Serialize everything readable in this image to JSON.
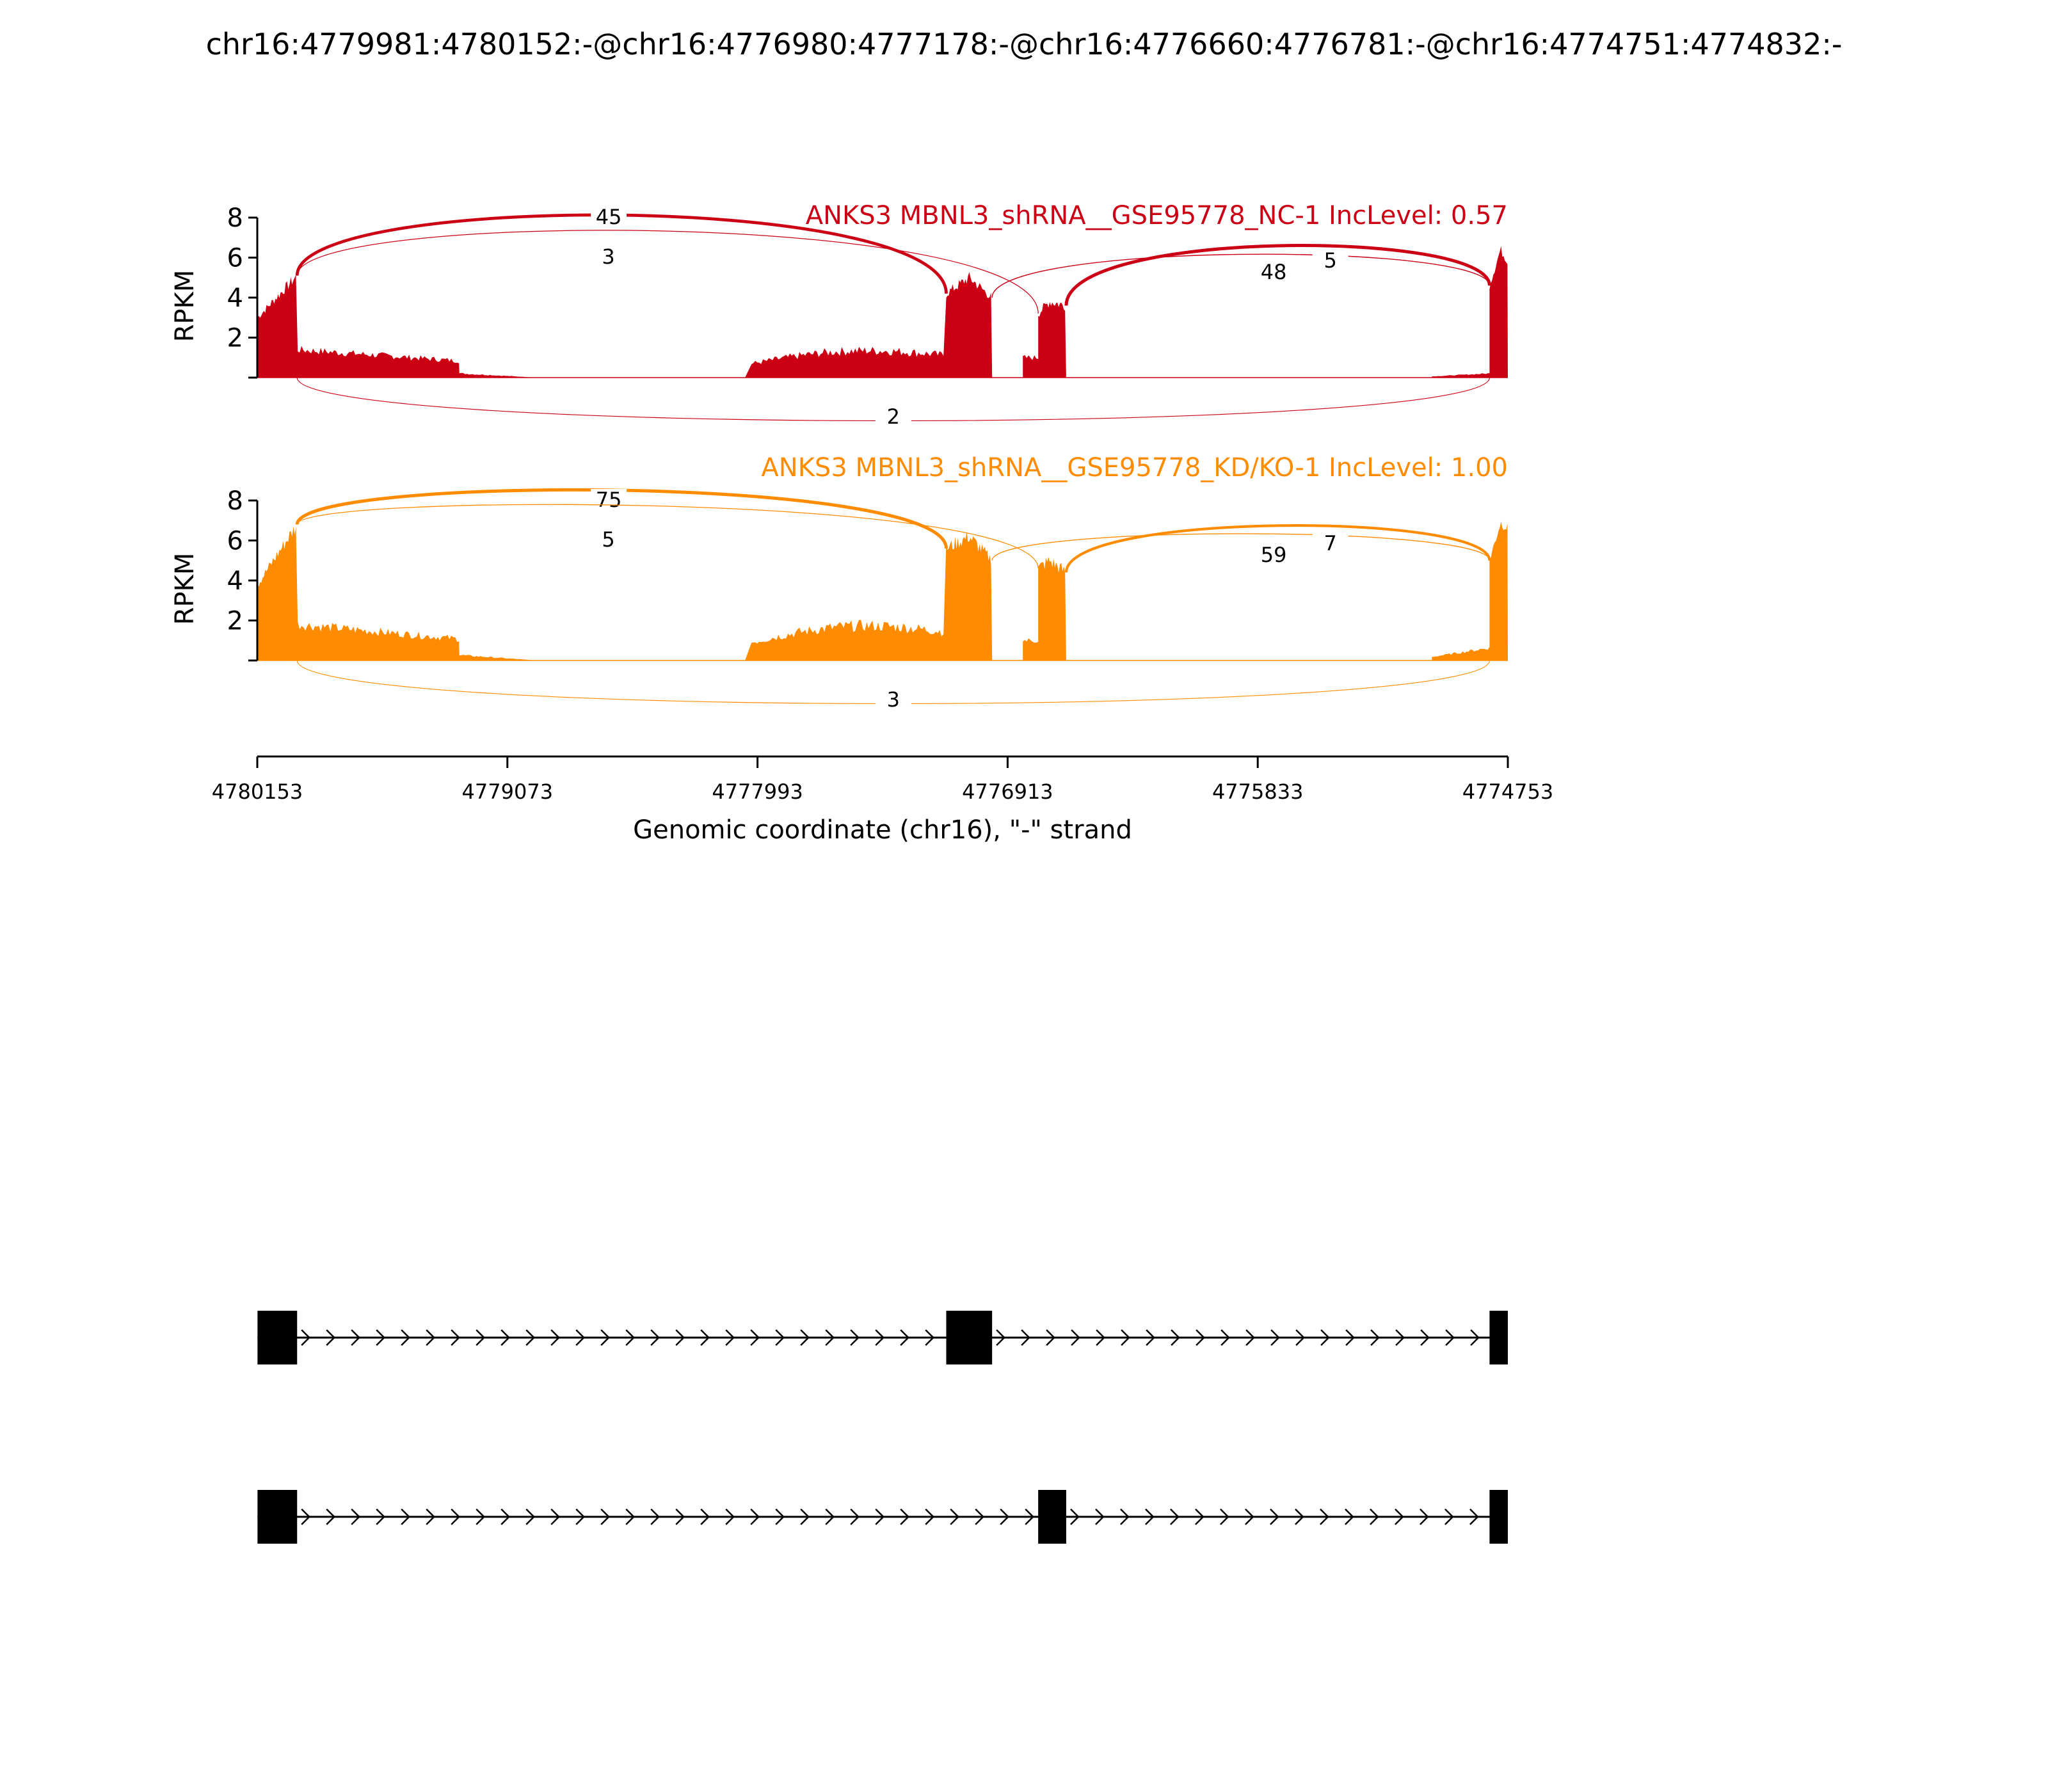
{
  "page_title": "chr16:4779981:4780152:-@chr16:4776980:4777178:-@chr16:4776660:4776781:-@chr16:4774751:4774832:-",
  "chart_data": {
    "type": "sashimi",
    "x_axis": {
      "label": "Genomic coordinate (chr16), \"-\" strand",
      "range": [
        4780153,
        4774753
      ],
      "ticks": [
        4780153,
        4779073,
        4777993,
        4776913,
        4775833,
        4774753
      ],
      "reversed": true
    },
    "y_axis": {
      "label": "RPKM",
      "ticks": [
        2,
        4,
        6,
        8
      ],
      "range": [
        0,
        8
      ]
    },
    "exons": {
      "exon1": [
        4780152,
        4779981
      ],
      "exon2": [
        4777178,
        4776980
      ],
      "exon3": [
        4776781,
        4776660
      ],
      "exon4": [
        4774832,
        4774753
      ]
    },
    "tracks": [
      {
        "title": "ANKS3 MBNL3_shRNA__GSE95778_NC-1 IncLevel: 0.57",
        "color": "#cc0014",
        "coverage": {
          "exon1": {
            "start": 3.0,
            "end": 5.1
          },
          "intron1": 1.4,
          "exon2": {
            "start": 4.2,
            "peak": 5.0,
            "end": 4.0
          },
          "intron2": 0,
          "exon3": {
            "start": 3.2,
            "peak": 3.8,
            "end": 3.6
          },
          "intron3": 0.15,
          "exon4": {
            "start": 4.6,
            "peak": 6.4,
            "end": 5.8
          }
        },
        "junctions": [
          {
            "from": "exon1",
            "to": "exon2",
            "count": 45,
            "side": "above"
          },
          {
            "from": "exon1",
            "to": "exon3",
            "count": 3,
            "side": "above"
          },
          {
            "from": "exon2",
            "to": "exon4",
            "count": 5,
            "side": "above"
          },
          {
            "from": "exon3",
            "to": "exon4",
            "count": 48,
            "side": "above"
          },
          {
            "from": "exon1",
            "to": "exon4",
            "count": 2,
            "side": "below"
          }
        ]
      },
      {
        "title": "ANKS3 MBNL3_shRNA__GSE95778_KD/KO-1 IncLevel: 1.00",
        "color": "#ff8c00",
        "coverage": {
          "exon1": {
            "start": 3.8,
            "end": 6.8
          },
          "intron1": 1.8,
          "exon2": {
            "start": 5.6,
            "peak": 6.2,
            "end": 5.0
          },
          "intron2": 0,
          "exon3": {
            "start": 4.6,
            "peak": 5.0,
            "end": 4.4
          },
          "intron3": 0.45,
          "exon4": {
            "start": 5.0,
            "peak": 6.9,
            "end": 6.6
          }
        },
        "junctions": [
          {
            "from": "exon1",
            "to": "exon2",
            "count": 75,
            "side": "above"
          },
          {
            "from": "exon1",
            "to": "exon3",
            "count": 5,
            "side": "above"
          },
          {
            "from": "exon2",
            "to": "exon4",
            "count": 7,
            "side": "above"
          },
          {
            "from": "exon3",
            "to": "exon4",
            "count": 59,
            "side": "above"
          },
          {
            "from": "exon1",
            "to": "exon4",
            "count": 3,
            "side": "below"
          }
        ]
      }
    ],
    "isoforms": [
      {
        "exons": [
          "exon1",
          "exon2",
          "exon4"
        ]
      },
      {
        "exons": [
          "exon1",
          "exon3",
          "exon4"
        ]
      }
    ]
  }
}
